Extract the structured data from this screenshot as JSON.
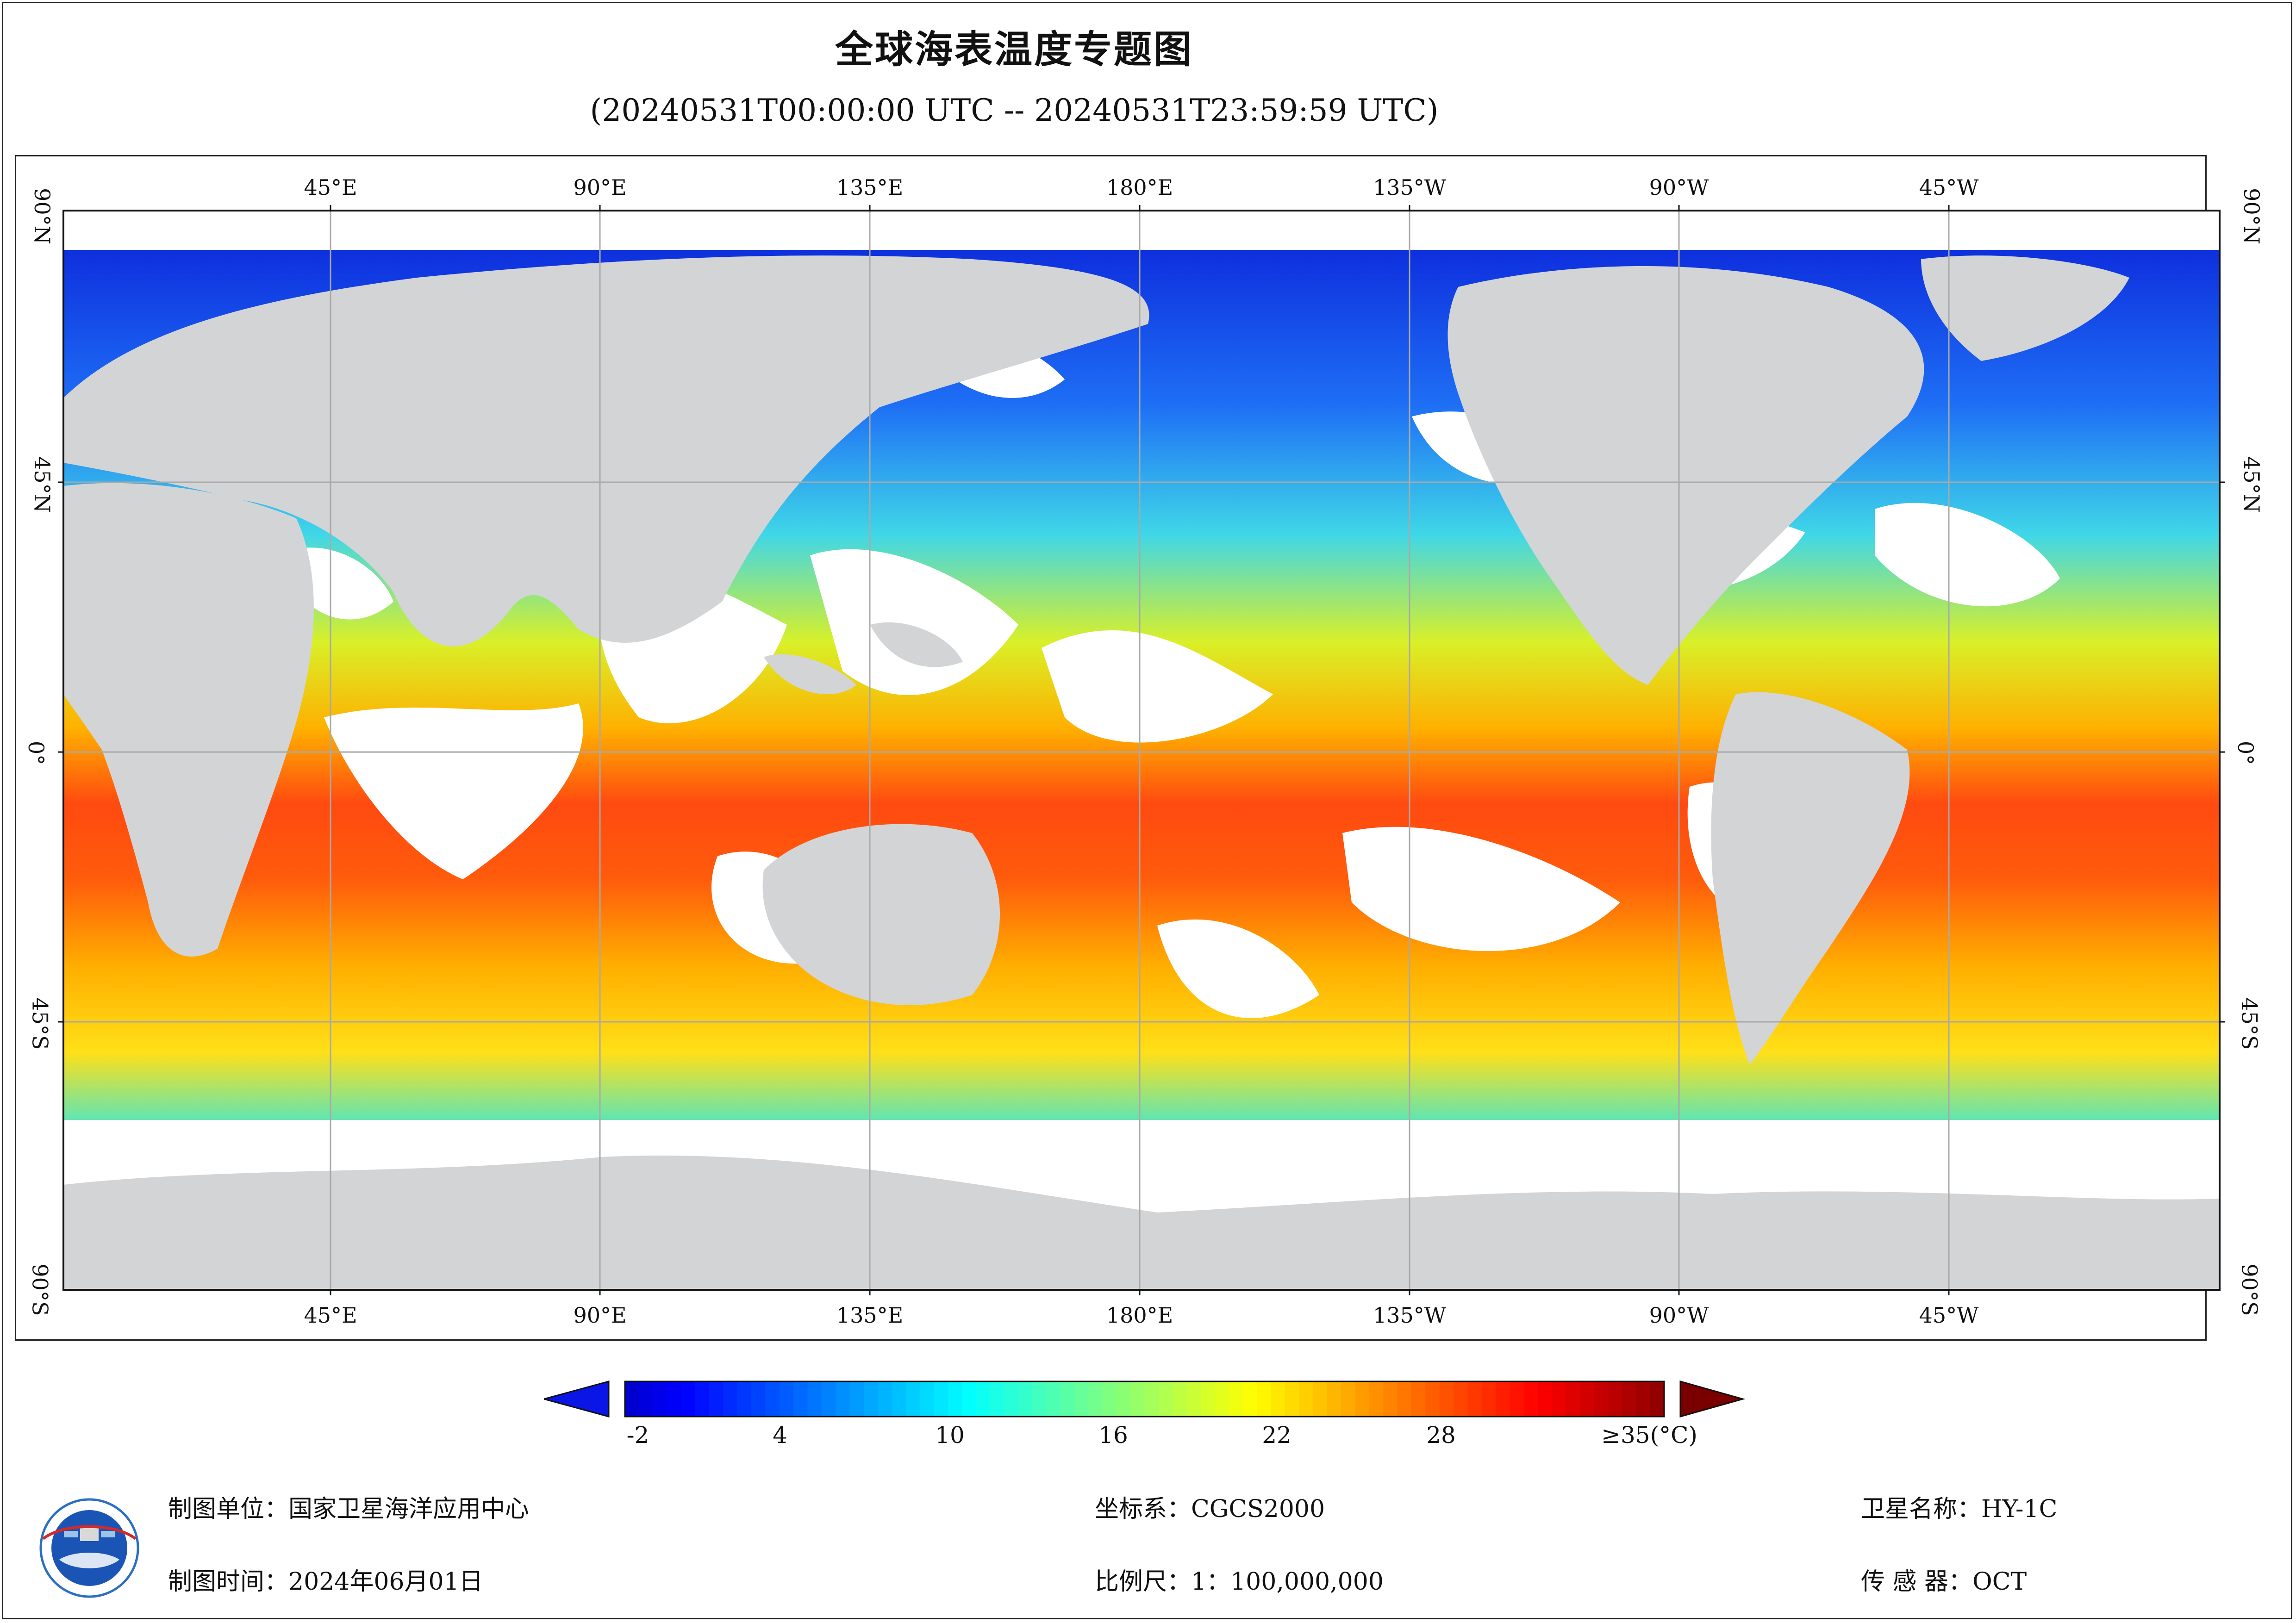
{
  "title": "全球海表温度专题图",
  "subtitle": "(20240531T00:00:00 UTC -- 20240531T23:59:59 UTC)",
  "map": {
    "lon_ticks": [
      "45°E",
      "90°E",
      "135°E",
      "180°E",
      "135°W",
      "90°W",
      "45°W"
    ],
    "lat_ticks": [
      "90°N",
      "45°N",
      "0°",
      "45°S",
      "90°S"
    ],
    "colors": {
      "land": "#d3d4d6",
      "cloud": "#ffffff",
      "grid": "#a9a9a9"
    }
  },
  "colorbar": {
    "labels": [
      "-2",
      "4",
      "10",
      "16",
      "22",
      "28",
      "≥35(°C)"
    ],
    "min": -2,
    "max": 35,
    "colormap": "jet"
  },
  "footer": {
    "org_label": "制图单位：",
    "org_value": "国家卫星海洋应用中心",
    "time_label": "制图时间：",
    "time_value": "2024年06月01日",
    "crs_label": "坐标系：",
    "crs_value": "CGCS2000",
    "scale_label": "比例尺：",
    "scale_value": "1：100,000,000",
    "sat_label": "卫星名称：",
    "sat_value": "HY-1C",
    "sensor_label": "传 感 器：",
    "sensor_value": "OCT"
  },
  "logo_icon": "nsoas-logo-icon"
}
